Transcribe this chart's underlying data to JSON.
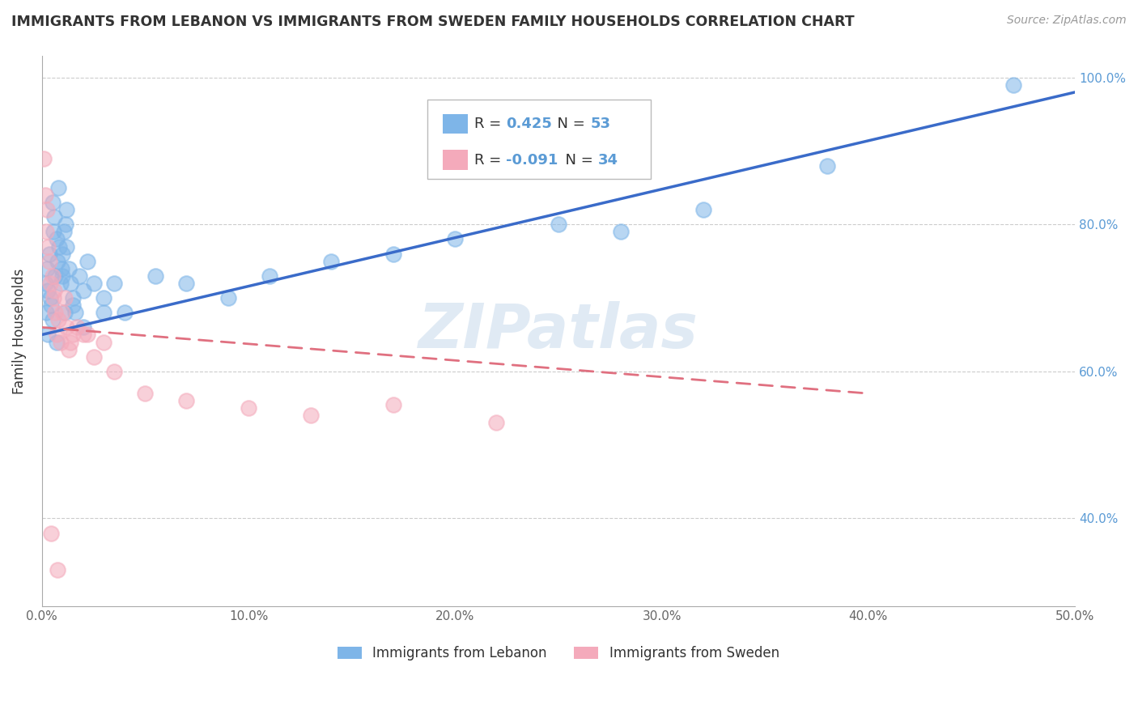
{
  "title": "IMMIGRANTS FROM LEBANON VS IMMIGRANTS FROM SWEDEN FAMILY HOUSEHOLDS CORRELATION CHART",
  "source": "Source: ZipAtlas.com",
  "ylabel": "Family Households",
  "legend_label_blue": "Immigrants from Lebanon",
  "legend_label_pink": "Immigrants from Sweden",
  "R_blue": 0.425,
  "N_blue": 53,
  "R_pink": -0.091,
  "N_pink": 34,
  "color_blue": "#7EB5E8",
  "color_pink": "#F4AABB",
  "color_line_blue": "#3A6BC9",
  "color_line_pink": "#E07080",
  "watermark": "ZIPatlas",
  "blue_x": [
    0.15,
    0.2,
    0.25,
    0.3,
    0.35,
    0.4,
    0.45,
    0.5,
    0.55,
    0.6,
    0.65,
    0.7,
    0.75,
    0.8,
    0.85,
    0.9,
    0.95,
    1.0,
    1.05,
    1.1,
    1.15,
    1.2,
    1.3,
    1.4,
    1.5,
    1.6,
    1.8,
    2.0,
    2.2,
    2.5,
    3.0,
    3.5,
    4.0,
    5.5,
    7.0,
    9.0,
    11.0,
    14.0,
    17.0,
    20.0,
    25.0,
    28.0,
    32.0,
    38.0,
    47.0,
    0.3,
    0.5,
    0.7,
    1.0,
    1.2,
    1.5,
    2.0,
    3.0
  ],
  "blue_y": [
    72.0,
    68.0,
    74.0,
    71.0,
    76.0,
    70.0,
    69.0,
    83.0,
    79.0,
    81.0,
    73.0,
    78.0,
    75.0,
    85.0,
    77.0,
    72.0,
    74.0,
    76.0,
    79.0,
    68.0,
    80.0,
    82.0,
    74.0,
    72.0,
    70.0,
    68.0,
    73.0,
    71.0,
    75.0,
    72.0,
    70.0,
    72.0,
    68.0,
    73.0,
    72.0,
    70.0,
    73.0,
    75.0,
    76.0,
    78.0,
    80.0,
    79.0,
    82.0,
    88.0,
    99.0,
    65.0,
    67.0,
    64.0,
    73.0,
    77.0,
    69.0,
    66.0,
    68.0
  ],
  "pink_x": [
    0.1,
    0.15,
    0.2,
    0.25,
    0.3,
    0.35,
    0.4,
    0.5,
    0.55,
    0.6,
    0.65,
    0.7,
    0.8,
    0.9,
    1.0,
    1.1,
    1.2,
    1.3,
    1.5,
    1.7,
    2.0,
    2.5,
    3.0,
    3.5,
    5.0,
    7.0,
    10.0,
    13.0,
    17.0,
    22.0,
    1.4,
    2.2,
    0.45,
    0.75
  ],
  "pink_y": [
    89.0,
    84.0,
    79.0,
    82.0,
    77.0,
    75.0,
    72.0,
    73.0,
    70.0,
    71.0,
    68.0,
    65.0,
    67.0,
    64.0,
    68.0,
    70.0,
    66.0,
    63.0,
    65.0,
    66.0,
    65.0,
    62.0,
    64.0,
    60.0,
    57.0,
    56.0,
    55.0,
    54.0,
    55.5,
    53.0,
    64.0,
    65.0,
    38.0,
    33.0
  ],
  "xlim": [
    0.0,
    50.0
  ],
  "ylim": [
    28.0,
    103.0
  ],
  "yticks": [
    40.0,
    60.0,
    80.0,
    100.0
  ],
  "xticks": [
    0.0,
    10.0,
    20.0,
    30.0,
    40.0,
    50.0
  ],
  "xtick_labels": [
    "0.0%",
    "10.0%",
    "20.0%",
    "30.0%",
    "40.0%",
    "50.0%"
  ],
  "ytick_labels_right": [
    "40.0%",
    "60.0%",
    "80.0%",
    "100.0%"
  ],
  "blue_line_x0": 0.0,
  "blue_line_y0": 65.0,
  "blue_line_x1": 50.0,
  "blue_line_y1": 98.0,
  "pink_line_x0": 0.0,
  "pink_line_y0": 66.0,
  "pink_line_x1": 40.0,
  "pink_line_y1": 57.0
}
